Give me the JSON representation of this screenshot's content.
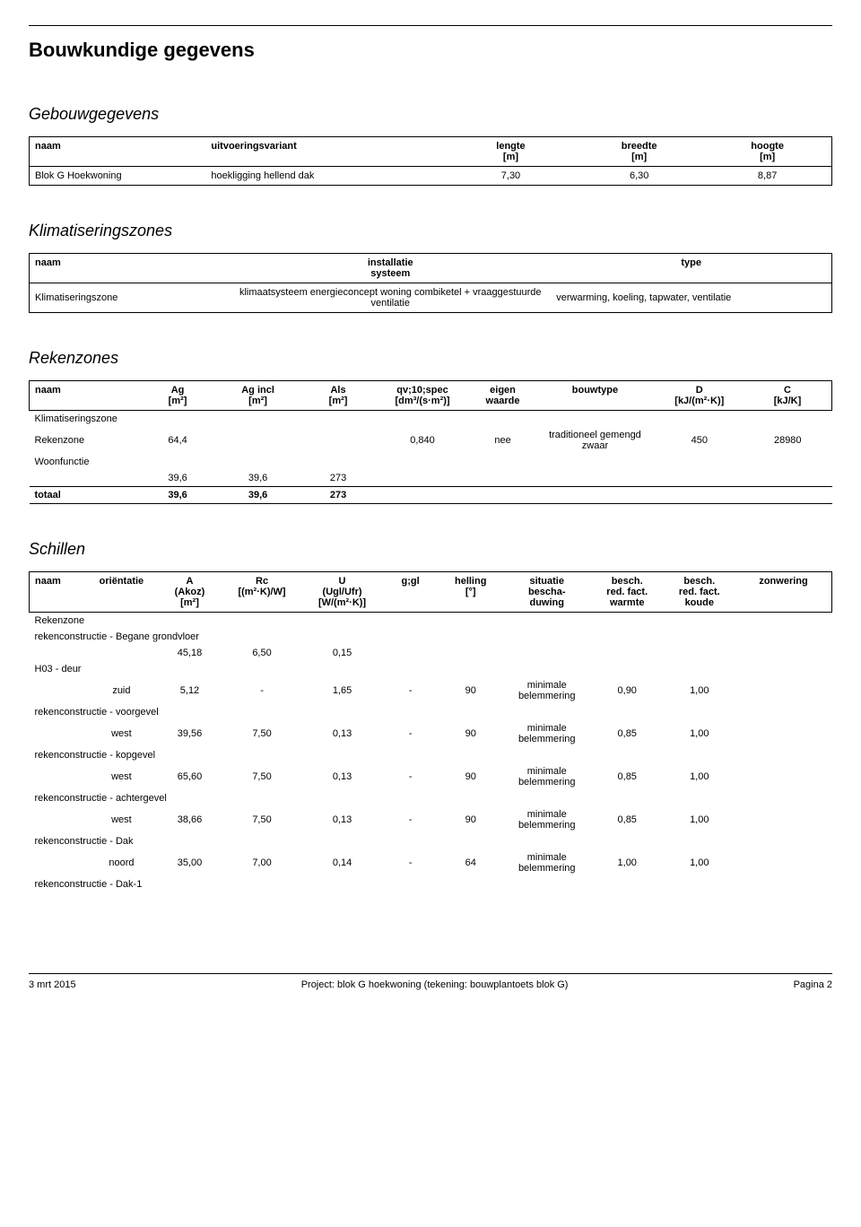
{
  "page_title": "Bouwkundige gegevens",
  "sections": {
    "gebouw": {
      "title": "Gebouwgegevens",
      "headers": {
        "naam": "naam",
        "uitv": "uitvoeringsvariant",
        "lengte": "lengte",
        "lengte_u": "[m]",
        "breedte": "breedte",
        "breedte_u": "[m]",
        "hoogte": "hoogte",
        "hoogte_u": "[m]"
      },
      "row": {
        "naam": "Blok G Hoekwoning",
        "uitv": "hoekligging hellend dak",
        "lengte": "7,30",
        "breedte": "6,30",
        "hoogte": "8,87"
      }
    },
    "klim": {
      "title": "Klimatiseringszones",
      "headers": {
        "naam": "naam",
        "install": "installatie",
        "systeem": "systeem",
        "type": "type"
      },
      "row": {
        "naam": "Klimatiseringszone",
        "install": "klimaatsysteem energieconcept woning combiketel + vraaggestuurde ventilatie",
        "type": "verwarming, koeling, tapwater, ventilatie"
      }
    },
    "reken": {
      "title": "Rekenzones",
      "headers": {
        "naam": "naam",
        "ag": "Ag",
        "ag_u": "[m²]",
        "agincl": "Ag incl",
        "agincl_u": "[m²]",
        "als": "Als",
        "als_u": "[m²]",
        "qv": "qv;10;spec",
        "qv_u": "[dm³/(s·m²)]",
        "eigen": "eigen",
        "waarde": "waarde",
        "bouw": "bouwtype",
        "d": "D",
        "d_u": "[kJ/(m²·K)]",
        "c": "C",
        "c_u": "[kJ/K]"
      },
      "zone_label": "Klimatiseringszone",
      "row1": {
        "naam": "Rekenzone",
        "ag": "64,4",
        "qv": "0,840",
        "eigen": "nee",
        "bouw": "traditioneel gemengd zwaar",
        "d": "450",
        "c": "28980"
      },
      "woon_label": "Woonfunctie",
      "row2": {
        "ag": "39,6",
        "agincl": "39,6",
        "als": "273"
      },
      "totaal_label": "totaal",
      "row3": {
        "ag": "39,6",
        "agincl": "39,6",
        "als": "273"
      }
    },
    "schillen": {
      "title": "Schillen",
      "headers": {
        "naam": "naam",
        "orient": "oriëntatie",
        "a1": "A",
        "a2": "(Akoz)",
        "a3": "[m²]",
        "rc": "Rc",
        "rc_u": "[(m²·K)/W]",
        "u1": "U",
        "u2": "(Ugl/Ufr)",
        "u3": "[W/(m²·K)]",
        "ggl": "g;gl",
        "helling": "helling",
        "helling_u": "[°]",
        "sit1": "situatie",
        "sit2": "bescha-",
        "sit3": "duwing",
        "bw1": "besch.",
        "bw2": "red. fact.",
        "bw3": "warmte",
        "bk1": "besch.",
        "bk2": "red. fact.",
        "bk3": "koude",
        "zon": "zonwering"
      },
      "zone_label": "Rekenzone",
      "groups": [
        {
          "label": "rekenconstructie - Begane grondvloer",
          "row": {
            "orient": "",
            "a": "45,18",
            "rc": "6,50",
            "u": "0,15",
            "ggl": "",
            "helling": "",
            "sit": "",
            "bw": "",
            "bk": ""
          }
        },
        {
          "label": "H03 - deur",
          "row": {
            "orient": "zuid",
            "a": "5,12",
            "rc": "-",
            "u": "1,65",
            "ggl": "-",
            "helling": "90",
            "sit": "minimale belemmering",
            "bw": "0,90",
            "bk": "1,00"
          }
        },
        {
          "label": "rekenconstructie - voorgevel",
          "row": {
            "orient": "west",
            "a": "39,56",
            "rc": "7,50",
            "u": "0,13",
            "ggl": "-",
            "helling": "90",
            "sit": "minimale belemmering",
            "bw": "0,85",
            "bk": "1,00"
          }
        },
        {
          "label": "rekenconstructie - kopgevel",
          "row": {
            "orient": "west",
            "a": "65,60",
            "rc": "7,50",
            "u": "0,13",
            "ggl": "-",
            "helling": "90",
            "sit": "minimale belemmering",
            "bw": "0,85",
            "bk": "1,00"
          }
        },
        {
          "label": "rekenconstructie - achtergevel",
          "row": {
            "orient": "west",
            "a": "38,66",
            "rc": "7,50",
            "u": "0,13",
            "ggl": "-",
            "helling": "90",
            "sit": "minimale belemmering",
            "bw": "0,85",
            "bk": "1,00"
          }
        },
        {
          "label": "rekenconstructie - Dak",
          "row": {
            "orient": "noord",
            "a": "35,00",
            "rc": "7,00",
            "u": "0,14",
            "ggl": "-",
            "helling": "64",
            "sit": "minimale belemmering",
            "bw": "1,00",
            "bk": "1,00"
          }
        },
        {
          "label": "rekenconstructie - Dak-1",
          "row": null
        }
      ]
    }
  },
  "footer": {
    "date": "3 mrt 2015",
    "project": "Project: blok G hoekwoning (tekening: bouwplantoets  blok G)",
    "page": "Pagina 2"
  }
}
